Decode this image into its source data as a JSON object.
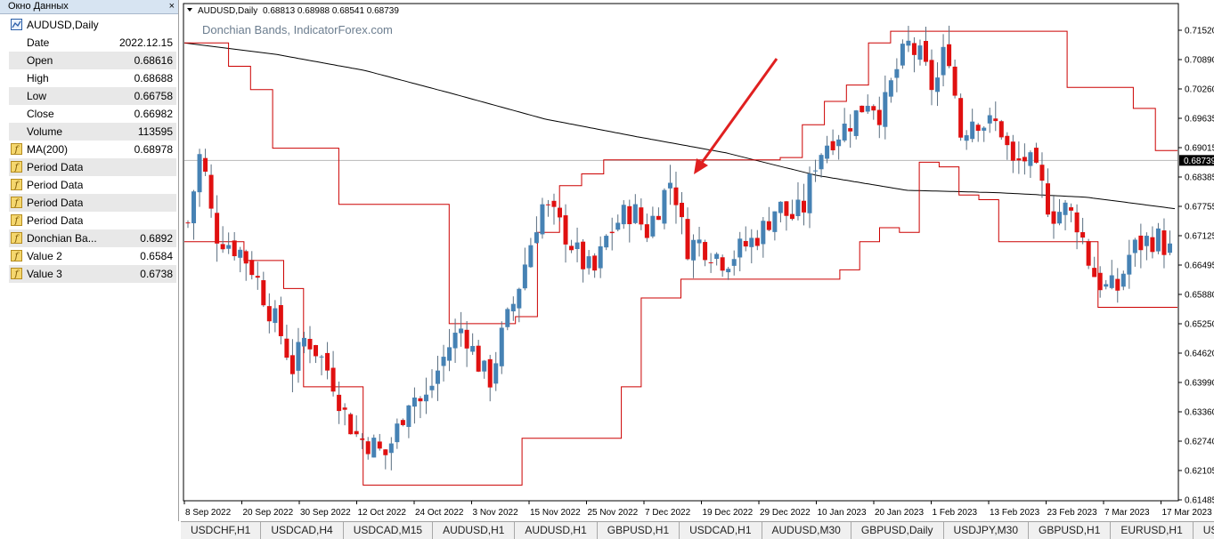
{
  "data_window": {
    "title": "Окно Данных",
    "close_glyph": "×",
    "symbol": "AUDUSD,Daily",
    "rows": [
      {
        "label": "Date",
        "value": "2022.12.15"
      },
      {
        "label": "Open",
        "value": "0.68616"
      },
      {
        "label": "High",
        "value": "0.68688"
      },
      {
        "label": "Low",
        "value": "0.66758"
      },
      {
        "label": "Close",
        "value": "0.66982"
      },
      {
        "label": "Volume",
        "value": "113595"
      }
    ],
    "indicators": [
      {
        "label": "MA(200)",
        "value": "0.68978"
      },
      {
        "label": "Period Data",
        "value": ""
      },
      {
        "label": "Period Data",
        "value": ""
      },
      {
        "label": "Period Data",
        "value": ""
      },
      {
        "label": "Period Data",
        "value": ""
      },
      {
        "label": "Donchian Ba...",
        "value": "0.6892"
      },
      {
        "label": "Value 2",
        "value": "0.6584"
      },
      {
        "label": "Value 3",
        "value": "0.6738"
      }
    ]
  },
  "chart_header": {
    "symbol_text": "AUDUSD,Daily",
    "ohlc_text": "0.68813 0.68988 0.68541 0.68739",
    "watermark": "Donchian Bands, IndicatorForex.com"
  },
  "colors": {
    "bull": "#4682b4",
    "bear": "#e01010",
    "channel": "#cc0000",
    "ma": "#000000",
    "arrow": "#e02020"
  },
  "chart_data": {
    "type": "candlestick",
    "y_ticks": [
      "0.71520",
      "0.70890",
      "0.70260",
      "0.69635",
      "0.69015",
      "0.68385",
      "0.67755",
      "0.67125",
      "0.66495",
      "0.65880",
      "0.65250",
      "0.64620",
      "0.63990",
      "0.63360",
      "0.62740",
      "0.62105",
      "0.61485"
    ],
    "current_price": "0.68739",
    "x_ticks": [
      "8 Sep 2022",
      "20 Sep 2022",
      "30 Sep 2022",
      "12 Oct 2022",
      "24 Oct 2022",
      "3 Nov 2022",
      "15 Nov 2022",
      "25 Nov 2022",
      "7 Dec 2022",
      "19 Dec 2022",
      "29 Dec 2022",
      "10 Jan 2023",
      "20 Jan 2023",
      "1 Feb 2023",
      "13 Feb 2023",
      "23 Feb 2023",
      "7 Mar 2023",
      "17 Mar 2023"
    ],
    "close_anchors": [
      0.674,
      0.69,
      0.672,
      0.67,
      0.668,
      0.664,
      0.657,
      0.651,
      0.643,
      0.65,
      0.646,
      0.641,
      0.633,
      0.628,
      0.627,
      0.624,
      0.63,
      0.638,
      0.635,
      0.642,
      0.648,
      0.652,
      0.645,
      0.64,
      0.65,
      0.658,
      0.668,
      0.678,
      0.675,
      0.671,
      0.666,
      0.663,
      0.671,
      0.675,
      0.677,
      0.672,
      0.678,
      0.684,
      0.669,
      0.67,
      0.668,
      0.666,
      0.668,
      0.67,
      0.673,
      0.678,
      0.675,
      0.677,
      0.688,
      0.692,
      0.694,
      0.697,
      0.701,
      0.697,
      0.706,
      0.712,
      0.709,
      0.702,
      0.713,
      0.693,
      0.697,
      0.695,
      0.695,
      0.686,
      0.688,
      0.683,
      0.676,
      0.677,
      0.674,
      0.664,
      0.66,
      0.66,
      0.668,
      0.67,
      0.671,
      0.668
    ],
    "ma200_anchors": [
      0.7125,
      0.7101,
      0.7066,
      0.7015,
      0.6962,
      0.6925,
      0.689,
      0.6842,
      0.681,
      0.6805,
      0.6795,
      0.677
    ],
    "upper_band_anchors": [
      0.7125,
      0.7125,
      0.7075,
      0.7025,
      0.69,
      0.69,
      0.69,
      0.678,
      0.678,
      0.678,
      0.678,
      0.678,
      0.6525,
      0.6525,
      0.6525,
      0.654,
      0.672,
      0.682,
      0.6845,
      0.6875,
      0.6875,
      0.6875,
      0.6875,
      0.6875,
      0.6875,
      0.6875,
      0.6875,
      0.688,
      0.695,
      0.7,
      0.7035,
      0.7125,
      0.715,
      0.715,
      0.715,
      0.715,
      0.715,
      0.715,
      0.715,
      0.715,
      0.703,
      0.703,
      0.703,
      0.6985,
      0.6895
    ],
    "lower_band_anchors": [
      0.67,
      0.67,
      0.67,
      0.666,
      0.666,
      0.66,
      0.639,
      0.639,
      0.639,
      0.618,
      0.618,
      0.618,
      0.618,
      0.618,
      0.618,
      0.618,
      0.618,
      0.628,
      0.628,
      0.628,
      0.628,
      0.628,
      0.639,
      0.658,
      0.658,
      0.662,
      0.662,
      0.662,
      0.662,
      0.662,
      0.662,
      0.662,
      0.662,
      0.664,
      0.67,
      0.673,
      0.672,
      0.687,
      0.686,
      0.68,
      0.679,
      0.67,
      0.67,
      0.67,
      0.67,
      0.67,
      0.656,
      0.656,
      0.656,
      0.656
    ]
  },
  "tabs": [
    "USDCHF,H1",
    "USDCAD,H4",
    "USDCAD,M15",
    "AUDUSD,H1",
    "AUDUSD,H1",
    "GBPUSD,H1",
    "USDCAD,H1",
    "AUDUSD,M30",
    "GBPUSD,Daily",
    "USDJPY,M30",
    "GBPUSD,H1",
    "EURUSD,H1",
    "USDCAD,"
  ]
}
